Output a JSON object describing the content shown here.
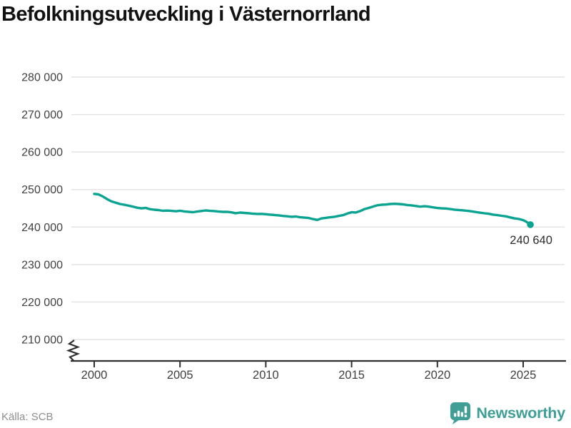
{
  "title": "Befolkningsutveckling i Västernorrland",
  "source": "Källa: SCB",
  "branding": {
    "logo_text": "Newsworthy",
    "logo_color": "#3f9e96"
  },
  "colors": {
    "line": "#0ba391",
    "grid": "#e4e4e4",
    "axis": "#2f2f2f",
    "tick_label": "#404040",
    "annotation": "#2b2b2b",
    "title": "#121212",
    "source": "#8e8e8e"
  },
  "chart_data": {
    "type": "line",
    "title": "Befolkningsutveckling i Västernorrland",
    "xlabel": "",
    "ylabel": "",
    "grid": "horizontal",
    "legend": "none",
    "axis_break": true,
    "ylim": [
      210000,
      280000
    ],
    "xlim": [
      1998.7,
      2027.4
    ],
    "y_ticks": [
      {
        "value": 280000,
        "label": "280 000"
      },
      {
        "value": 270000,
        "label": "270 000"
      },
      {
        "value": 260000,
        "label": "260 000"
      },
      {
        "value": 250000,
        "label": "250 000"
      },
      {
        "value": 240000,
        "label": "240 000"
      },
      {
        "value": 230000,
        "label": "230 000"
      },
      {
        "value": 220000,
        "label": "220 000"
      },
      {
        "value": 210000,
        "label": "210 000"
      }
    ],
    "x_ticks": [
      {
        "value": 2000,
        "label": "2000"
      },
      {
        "value": 2005,
        "label": "2005"
      },
      {
        "value": 2010,
        "label": "2010"
      },
      {
        "value": 2015,
        "label": "2015"
      },
      {
        "value": 2020,
        "label": "2020"
      },
      {
        "value": 2025,
        "label": "2025"
      }
    ],
    "end_label": "240 640",
    "end_value": 240640,
    "series": [
      {
        "name": "Befolkning Västernorrland",
        "points": [
          [
            2000.0,
            248850
          ],
          [
            2000.25,
            248700
          ],
          [
            2000.5,
            248150
          ],
          [
            2000.75,
            247450
          ],
          [
            2001.0,
            246850
          ],
          [
            2001.25,
            246500
          ],
          [
            2001.5,
            246150
          ],
          [
            2001.75,
            245950
          ],
          [
            2002.0,
            245700
          ],
          [
            2002.25,
            245450
          ],
          [
            2002.5,
            245150
          ],
          [
            2002.75,
            244980
          ],
          [
            2003.0,
            245120
          ],
          [
            2003.25,
            244780
          ],
          [
            2003.5,
            244620
          ],
          [
            2003.75,
            244520
          ],
          [
            2004.0,
            244330
          ],
          [
            2004.25,
            244400
          ],
          [
            2004.5,
            244310
          ],
          [
            2004.75,
            244210
          ],
          [
            2005.0,
            244360
          ],
          [
            2005.25,
            244160
          ],
          [
            2005.5,
            244060
          ],
          [
            2005.75,
            243950
          ],
          [
            2006.0,
            244120
          ],
          [
            2006.25,
            244280
          ],
          [
            2006.5,
            244430
          ],
          [
            2006.75,
            244310
          ],
          [
            2007.0,
            244260
          ],
          [
            2007.25,
            244120
          ],
          [
            2007.5,
            244050
          ],
          [
            2007.75,
            244070
          ],
          [
            2008.0,
            243920
          ],
          [
            2008.25,
            243690
          ],
          [
            2008.5,
            243860
          ],
          [
            2008.75,
            243760
          ],
          [
            2009.0,
            243690
          ],
          [
            2009.25,
            243560
          ],
          [
            2009.5,
            243490
          ],
          [
            2009.75,
            243510
          ],
          [
            2010.0,
            243420
          ],
          [
            2010.25,
            243310
          ],
          [
            2010.5,
            243210
          ],
          [
            2010.75,
            243110
          ],
          [
            2011.0,
            242960
          ],
          [
            2011.25,
            242870
          ],
          [
            2011.5,
            242730
          ],
          [
            2011.75,
            242810
          ],
          [
            2012.0,
            242600
          ],
          [
            2012.25,
            242510
          ],
          [
            2012.5,
            242410
          ],
          [
            2012.75,
            242120
          ],
          [
            2013.0,
            241900
          ],
          [
            2013.25,
            242290
          ],
          [
            2013.5,
            242460
          ],
          [
            2013.75,
            242600
          ],
          [
            2014.0,
            242730
          ],
          [
            2014.25,
            242960
          ],
          [
            2014.5,
            243170
          ],
          [
            2014.75,
            243600
          ],
          [
            2015.0,
            243950
          ],
          [
            2015.25,
            243880
          ],
          [
            2015.5,
            244250
          ],
          [
            2015.75,
            244800
          ],
          [
            2016.0,
            245100
          ],
          [
            2016.25,
            245450
          ],
          [
            2016.5,
            245800
          ],
          [
            2016.75,
            245950
          ],
          [
            2017.0,
            246000
          ],
          [
            2017.25,
            246150
          ],
          [
            2017.5,
            246200
          ],
          [
            2017.75,
            246150
          ],
          [
            2018.0,
            246050
          ],
          [
            2018.25,
            245880
          ],
          [
            2018.5,
            245780
          ],
          [
            2018.75,
            245600
          ],
          [
            2019.0,
            245430
          ],
          [
            2019.25,
            245560
          ],
          [
            2019.5,
            245430
          ],
          [
            2019.75,
            245250
          ],
          [
            2020.0,
            245070
          ],
          [
            2020.25,
            244990
          ],
          [
            2020.5,
            244950
          ],
          [
            2020.75,
            244800
          ],
          [
            2021.0,
            244630
          ],
          [
            2021.25,
            244550
          ],
          [
            2021.5,
            244440
          ],
          [
            2021.75,
            244310
          ],
          [
            2022.0,
            244190
          ],
          [
            2022.25,
            244000
          ],
          [
            2022.5,
            243820
          ],
          [
            2022.75,
            243660
          ],
          [
            2023.0,
            243540
          ],
          [
            2023.25,
            243310
          ],
          [
            2023.5,
            243170
          ],
          [
            2023.75,
            243010
          ],
          [
            2024.0,
            242860
          ],
          [
            2024.25,
            242560
          ],
          [
            2024.5,
            242290
          ],
          [
            2024.75,
            242150
          ],
          [
            2025.0,
            241850
          ],
          [
            2025.17,
            241450
          ],
          [
            2025.33,
            240950
          ],
          [
            2025.42,
            240640
          ]
        ]
      }
    ]
  }
}
